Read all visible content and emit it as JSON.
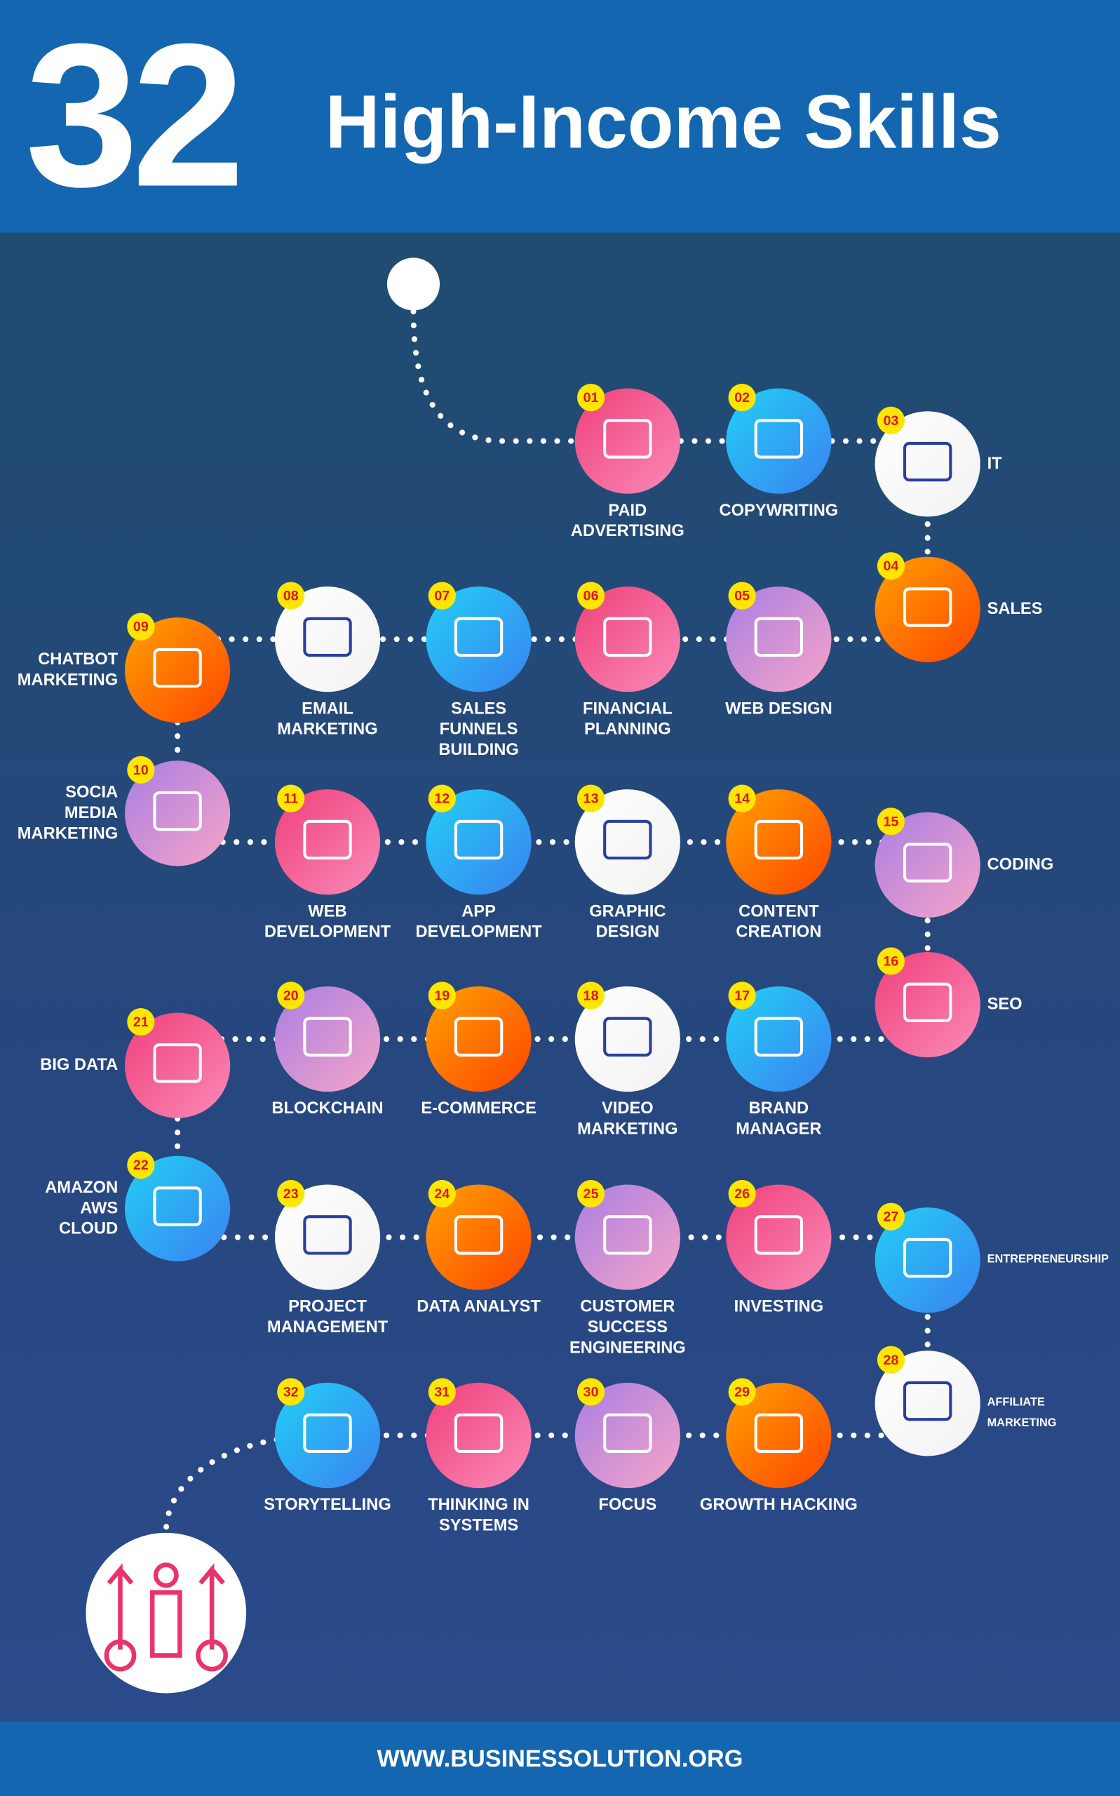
{
  "header": {
    "number": "32",
    "title": "High-Income Skills"
  },
  "skills": [
    {
      "number": "01",
      "label": "PAID\nADVERTISING"
    },
    {
      "number": "02",
      "label": "COPYWRITING"
    },
    {
      "number": "03",
      "label": "IT"
    },
    {
      "number": "04",
      "label": "SALES"
    },
    {
      "number": "05",
      "label": "WEB DESIGN"
    },
    {
      "number": "06",
      "label": "FINANCIAL\nPLANNING"
    },
    {
      "number": "07",
      "label": "SALES\nFUNNELS\nBUILDING"
    },
    {
      "number": "08",
      "label": "EMAIL\nMARKETING"
    },
    {
      "number": "09",
      "label": "CHATBOT\nMARKETING"
    },
    {
      "number": "10",
      "label": "SOCIA\nMEDIA\nMARKETING"
    },
    {
      "number": "11",
      "label": "WEB\nDEVELOPMENT"
    },
    {
      "number": "12",
      "label": "APP\nDEVELOPMENT"
    },
    {
      "number": "13",
      "label": "GRAPHIC\nDESIGN"
    },
    {
      "number": "14",
      "label": "CONTENT\nCREATION"
    },
    {
      "number": "15",
      "label": "CODING"
    },
    {
      "number": "16",
      "label": "SEO"
    },
    {
      "number": "17",
      "label": "BRAND\nMANAGER"
    },
    {
      "number": "18",
      "label": "VIDEO\nMARKETING"
    },
    {
      "number": "19",
      "label": "E-COMMERCE"
    },
    {
      "number": "20",
      "label": "BLOCKCHAIN"
    },
    {
      "number": "21",
      "label": "BIG DATA"
    },
    {
      "number": "22",
      "label": "AMAZON\nAWS\nCLOUD"
    },
    {
      "number": "23",
      "label": "PROJECT\nMANAGEMENT"
    },
    {
      "number": "24",
      "label": "DATA ANALYST"
    },
    {
      "number": "25",
      "label": "CUSTOMER\nSUCCESS\nENGINEERING"
    },
    {
      "number": "26",
      "label": "INVESTING"
    },
    {
      "number": "27",
      "label": "ENTREPRENEURSHIP"
    },
    {
      "number": "28",
      "label": "AFFILIATE\nMARKETING"
    },
    {
      "number": "29",
      "label": "GROWTH HACKING"
    },
    {
      "number": "30",
      "label": "FOCUS"
    },
    {
      "number": "31",
      "label": "THINKING IN\nSYSTEMS"
    },
    {
      "number": "32",
      "label": "STORYTELLING"
    }
  ],
  "footer": {
    "url": "WWW.BUSINESSOLUTION.ORG"
  }
}
